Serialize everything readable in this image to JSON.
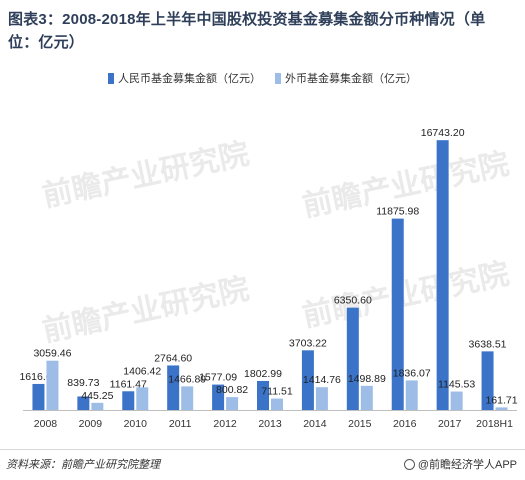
{
  "title": "图表3：2008-2018年上半年中国股权投资基金募集金额分币种情况（单位：亿元）",
  "source": "资料来源：前瞻产业研究院整理",
  "brand": "@前瞻经济学人APP",
  "watermark": "前瞻产业研究院",
  "colors": {
    "rmb": "#3a73c8",
    "fx": "#9dbde6"
  },
  "chart_data": {
    "type": "bar",
    "title": "图表3：2008-2018年上半年中国股权投资基金募集金额分币种情况（单位：亿元）",
    "categories": [
      "2008",
      "2009",
      "2010",
      "2011",
      "2012",
      "2013",
      "2014",
      "2015",
      "2016",
      "2017",
      "2018H1"
    ],
    "series": [
      {
        "name": "人民币基金募集金额（亿元）",
        "values": [
          1616.61,
          839.73,
          1161.47,
          2764.6,
          1577.09,
          1802.99,
          3703.22,
          6350.6,
          11875.98,
          16743.2,
          3638.51
        ]
      },
      {
        "name": "外币基金募集金额（亿元）",
        "values": [
          3059.46,
          445.25,
          1406.42,
          1466.89,
          800.82,
          711.51,
          1414.76,
          1498.89,
          1836.07,
          1145.53,
          161.71
        ]
      }
    ],
    "value_labels": [
      [
        "1616.61",
        "839.73",
        "1161.47",
        "2764.60",
        "1577.09",
        "1802.99",
        "3703.22",
        "6350.60",
        "11875.98",
        "16743.20",
        "3638.51"
      ],
      [
        "3059.46",
        "445.25",
        "1406.42",
        "1466.89",
        "800.82",
        "711.51",
        "1414.76",
        "1498.89",
        "1836.07",
        "1145.53",
        "161.71"
      ]
    ],
    "ylim": [
      0,
      17500
    ],
    "grid": false,
    "legend": "top-center"
  }
}
